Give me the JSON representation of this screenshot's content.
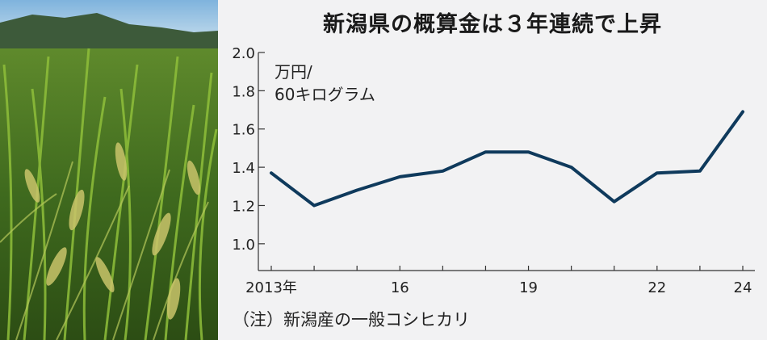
{
  "photo": {
    "icon": "rice-field-photo"
  },
  "chart_data": {
    "type": "line",
    "title": "新潟県の概算金は３年連続で上昇",
    "ylabel_lines": [
      "万円/",
      "60キログラム"
    ],
    "note": "（注）新潟産の一般コシヒカリ",
    "x": [
      2013,
      2014,
      2015,
      2016,
      2017,
      2018,
      2019,
      2020,
      2021,
      2022,
      2023,
      2024
    ],
    "x_tick_labels": [
      {
        "x": 2013,
        "label": "2013年"
      },
      {
        "x": 2016,
        "label": "16"
      },
      {
        "x": 2019,
        "label": "19"
      },
      {
        "x": 2022,
        "label": "22"
      },
      {
        "x": 2024,
        "label": "24"
      }
    ],
    "y_tick_labels": [
      "1.0",
      "1.2",
      "1.4",
      "1.6",
      "1.8",
      "2.0"
    ],
    "y_ticks": [
      1.0,
      1.2,
      1.4,
      1.6,
      1.8,
      2.0
    ],
    "series": [
      {
        "values": [
          1.37,
          1.2,
          1.28,
          1.35,
          1.38,
          1.48,
          1.48,
          1.4,
          1.22,
          1.37,
          1.38,
          1.69
        ]
      }
    ],
    "ylim": [
      0.86,
      2.0
    ],
    "grid": false,
    "line_color": "#0f3a5c",
    "axis_color": "#333333"
  }
}
